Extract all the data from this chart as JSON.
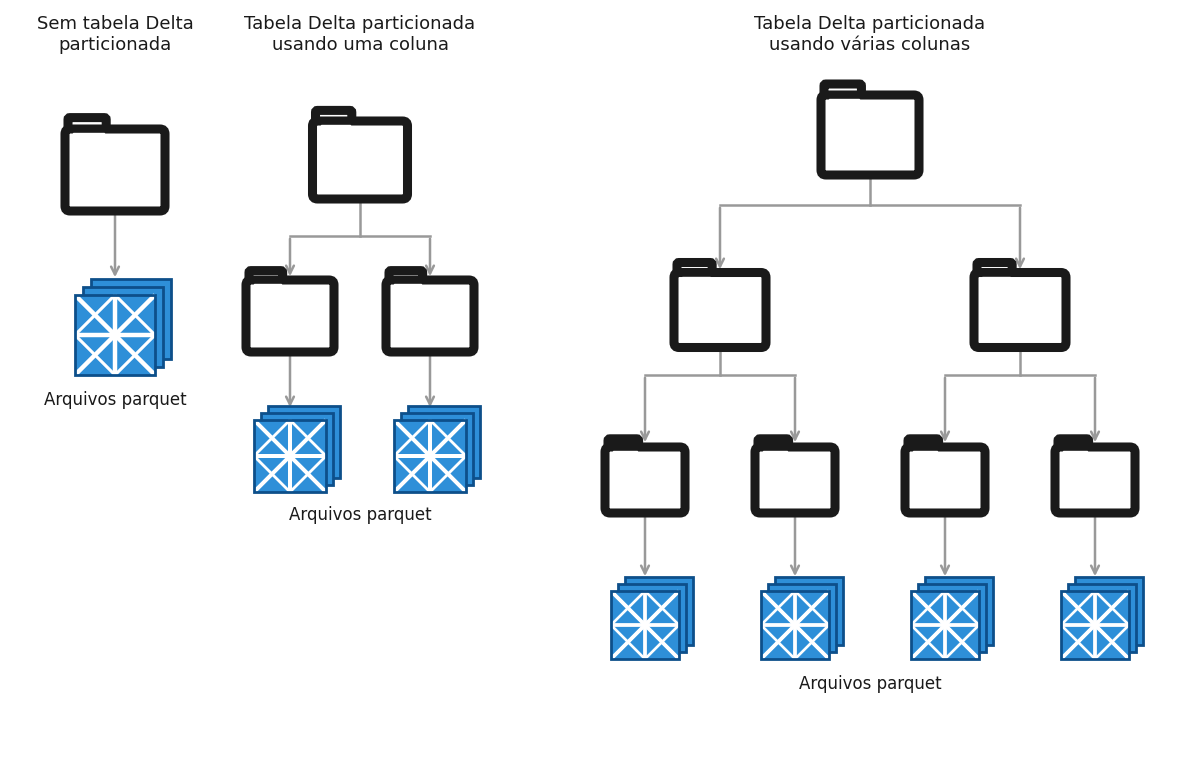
{
  "title_left": "Sem tabela Delta\nparticionada",
  "title_mid": "Tabela Delta particionada\nusando uma coluna",
  "title_right": "Tabela Delta particionada\nusando várias colunas",
  "label_parquet": "Arquivos parquet",
  "bg_color": "#ffffff",
  "folder_color": "#1a1a1a",
  "arrow_color": "#999999",
  "parquet_blue_light": "#2E8FD8",
  "parquet_blue_mid": "#1B6DB5",
  "parquet_blue_dark": "#0D4F8A",
  "parquet_white": "#ffffff",
  "title_fontsize": 13,
  "label_fontsize": 12
}
